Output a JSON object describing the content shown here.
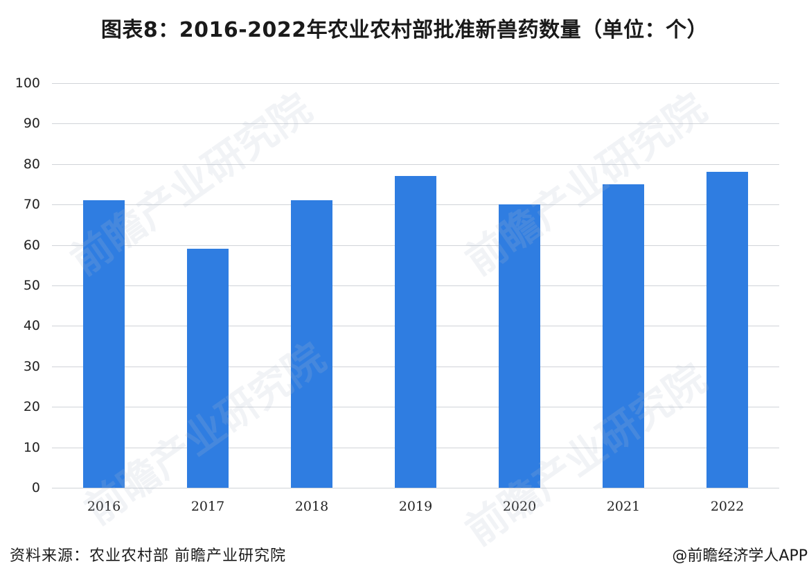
{
  "header": {
    "title": "图表8：2016-2022年农业农村部批准新兽药数量（单位：个）"
  },
  "chart_data": {
    "type": "bar",
    "title": "图表8：2016-2022年农业农村部批准新兽药数量（单位：个）",
    "xlabel": "",
    "ylabel": "",
    "unit": "个",
    "categories": [
      "2016",
      "2017",
      "2018",
      "2019",
      "2020",
      "2021",
      "2022"
    ],
    "values": [
      71,
      59,
      71,
      77,
      70,
      75,
      78
    ],
    "ylim": [
      0,
      100
    ],
    "yticks": [
      "0",
      "10",
      "20",
      "30",
      "40",
      "50",
      "60",
      "70",
      "80",
      "90",
      "100"
    ],
    "grid": true,
    "legend": null,
    "bar_color": "#2f7de1"
  },
  "footer": {
    "source": "资料来源：农业农村部 前瞻产业研究院",
    "credit": "@前瞻经济学人APP"
  },
  "watermark": {
    "text": "前瞻产业研究院"
  }
}
